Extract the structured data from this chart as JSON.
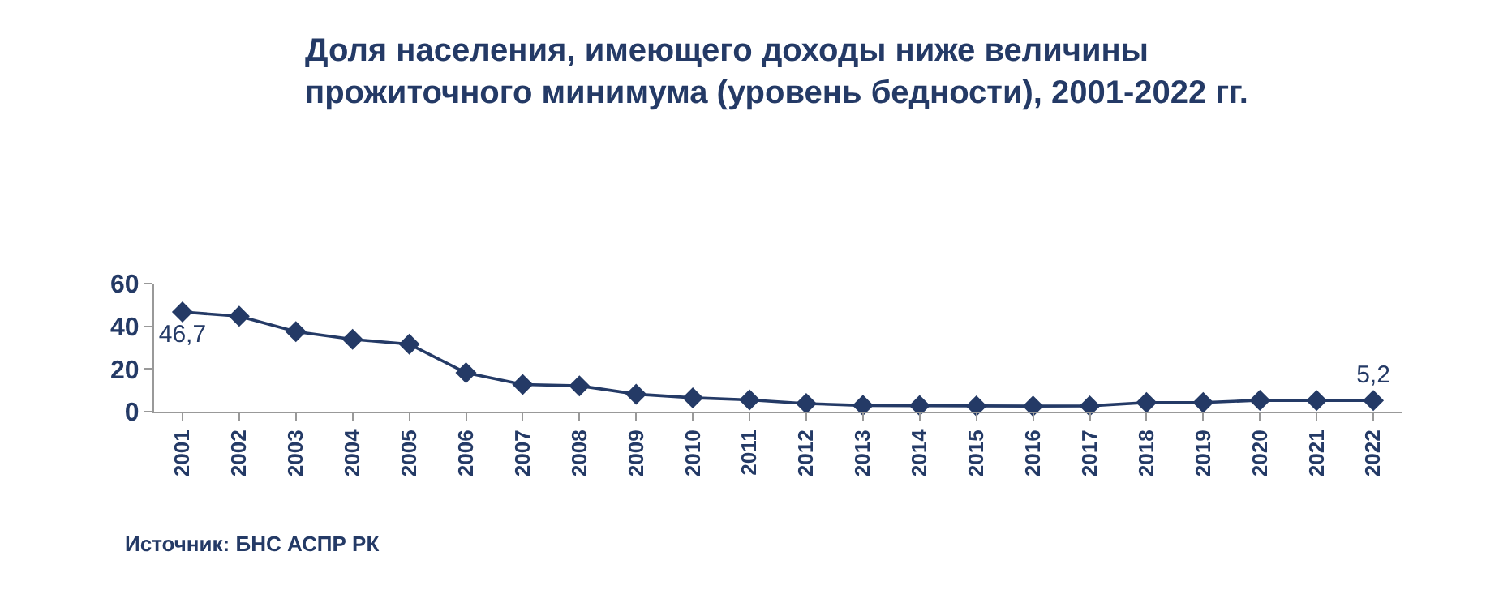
{
  "chart_data": {
    "type": "line",
    "title": "Доля населения, имеющего доходы ниже величины прожиточного минимума (уровень бедности), 2001-2022 гг.",
    "categories": [
      "2001",
      "2002",
      "2003",
      "2004",
      "2005",
      "2006",
      "2007",
      "2008",
      "2009",
      "2010",
      "2011",
      "2012",
      "2013",
      "2014",
      "2015",
      "2016",
      "2017",
      "2018",
      "2019",
      "2020",
      "2021",
      "2022"
    ],
    "series": [
      {
        "color": "#243a66",
        "values": [
          46.7,
          44.7,
          37.5,
          33.9,
          31.6,
          18.2,
          12.7,
          12.1,
          8.2,
          6.5,
          5.5,
          3.8,
          2.9,
          2.8,
          2.7,
          2.6,
          2.7,
          4.3,
          4.3,
          5.3,
          5.2,
          5.2
        ],
        "value_labels": [
          "46,7",
          null,
          null,
          null,
          null,
          null,
          null,
          null,
          null,
          null,
          null,
          null,
          null,
          null,
          null,
          null,
          null,
          null,
          null,
          null,
          null,
          "5,2"
        ]
      }
    ],
    "ylim": [
      0,
      60
    ],
    "yticks": [
      0,
      20,
      40,
      60
    ],
    "grid": false,
    "marker": "diamond",
    "line_style": "solid",
    "annotations": [
      "Источник: БНС АСПР РК"
    ]
  }
}
